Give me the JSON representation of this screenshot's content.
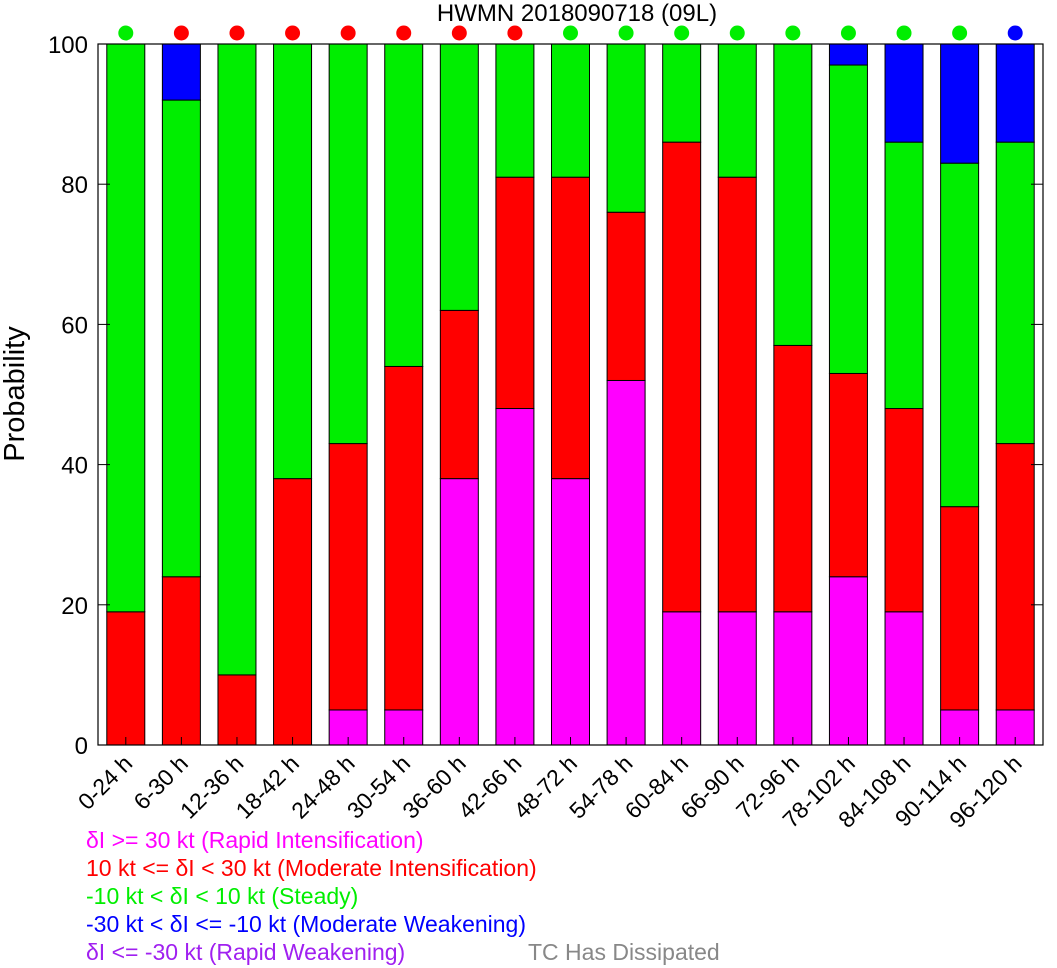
{
  "chart_data": {
    "type": "bar",
    "stacked": true,
    "title": "HWMN 2018090718  (09L)",
    "ylabel": "Probability",
    "xlabel": "",
    "ylim": [
      0,
      100
    ],
    "yticks": [
      0,
      20,
      40,
      60,
      80,
      100
    ],
    "categories": [
      "0-24 h",
      "6-30 h",
      "12-36 h",
      "18-42 h",
      "24-48 h",
      "30-54 h",
      "36-60 h",
      "42-66 h",
      "48-72 h",
      "54-78 h",
      "60-84 h",
      "66-90 h",
      "72-96 h",
      "78-102 h",
      "84-108 h",
      "90-114 h",
      "96-120 h"
    ],
    "series": [
      {
        "key": "ri",
        "color": "#ff00ff",
        "values": [
          0,
          0,
          0,
          0,
          5,
          5,
          38,
          48,
          38,
          52,
          19,
          19,
          19,
          24,
          19,
          5,
          5
        ]
      },
      {
        "key": "mi",
        "color": "#ff0000",
        "values": [
          19,
          24,
          10,
          38,
          38,
          49,
          24,
          33,
          43,
          24,
          67,
          62,
          38,
          29,
          29,
          29,
          38
        ]
      },
      {
        "key": "st",
        "color": "#00ee00",
        "values": [
          81,
          68,
          90,
          62,
          57,
          46,
          38,
          19,
          19,
          24,
          14,
          19,
          43,
          44,
          38,
          49,
          43
        ]
      },
      {
        "key": "mw",
        "color": "#0000ff",
        "values": [
          0,
          8,
          0,
          0,
          0,
          0,
          0,
          0,
          0,
          0,
          0,
          0,
          0,
          3,
          14,
          17,
          14
        ]
      },
      {
        "key": "rw",
        "color": "#a020f0",
        "values": [
          0,
          0,
          0,
          0,
          0,
          0,
          0,
          0,
          0,
          0,
          0,
          0,
          0,
          0,
          0,
          0,
          0
        ]
      }
    ],
    "top_markers": [
      "#00ee00",
      "#ff0000",
      "#ff0000",
      "#ff0000",
      "#ff0000",
      "#ff0000",
      "#ff0000",
      "#ff0000",
      "#00ee00",
      "#00ee00",
      "#00ee00",
      "#00ee00",
      "#00ee00",
      "#00ee00",
      "#00ee00",
      "#00ee00",
      "#0000ff"
    ],
    "grid": false,
    "legend_position": "bottom-left"
  },
  "legend": {
    "items": [
      {
        "text": "δI >= 30 kt (Rapid Intensification)",
        "color": "#ff00ff"
      },
      {
        "text": "10 kt <= δI < 30 kt (Moderate Intensification)",
        "color": "#ff0000"
      },
      {
        "text": "-10 kt < δI < 10 kt (Steady)",
        "color": "#00ee00"
      },
      {
        "text": "-30 kt < δI <= -10 kt (Moderate Weakening)",
        "color": "#0000ff"
      },
      {
        "text": "δI <= -30 kt (Rapid Weakening)",
        "color": "#a020f0"
      }
    ],
    "dissipated": {
      "text": "TC Has Dissipated",
      "color": "#888888"
    }
  }
}
